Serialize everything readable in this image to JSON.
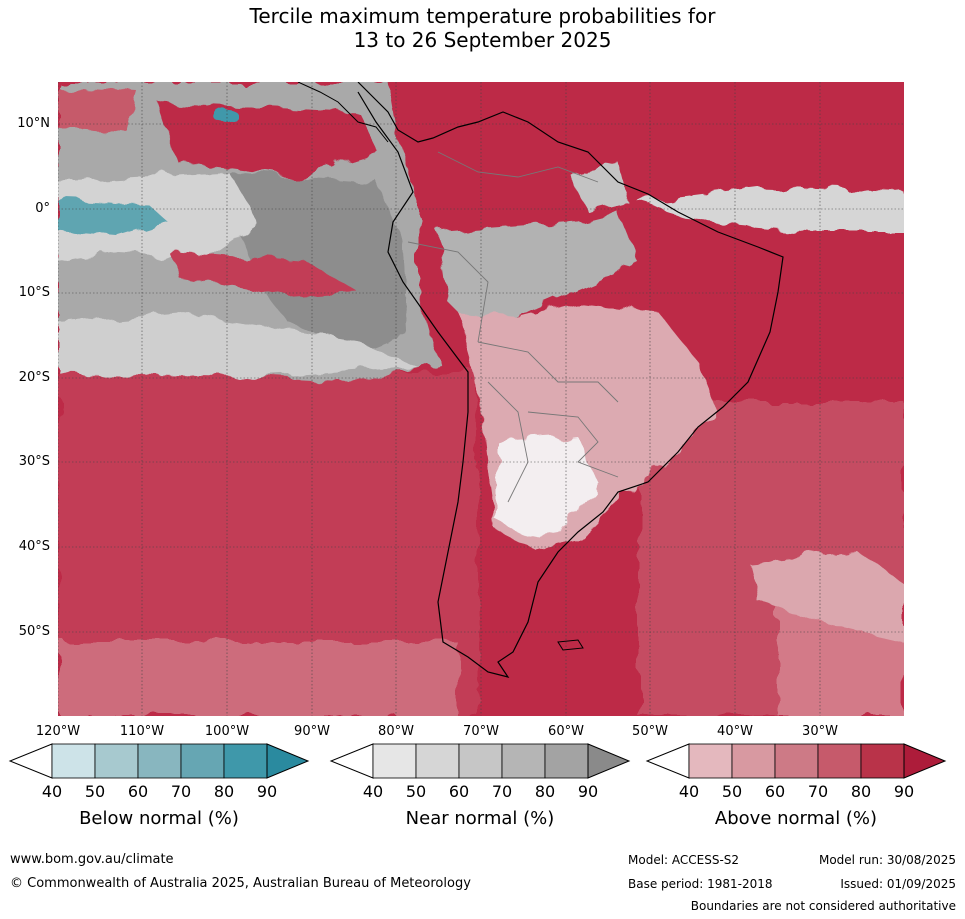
{
  "title": {
    "line1": "Tercile maximum temperature probabilities for",
    "line2": "13 to 26 September 2025"
  },
  "axes": {
    "lat_labels": [
      "10°N",
      "0°",
      "10°S",
      "20°S",
      "30°S",
      "40°S",
      "50°S"
    ],
    "lon_labels": [
      "120°W",
      "110°W",
      "100°W",
      "90°W",
      "80°W",
      "70°W",
      "60°W",
      "50°W",
      "40°W",
      "30°W"
    ]
  },
  "colorbars": [
    {
      "label": "Below normal (%)",
      "ticks": [
        "40",
        "50",
        "60",
        "70",
        "80",
        "90"
      ],
      "colors": [
        "#ffffff",
        "#cde3e8",
        "#a7c9cf",
        "#88b6bf",
        "#66a6b3",
        "#3f98aa",
        "#2a8a9f"
      ]
    },
    {
      "label": "Near normal (%)",
      "ticks": [
        "40",
        "50",
        "60",
        "70",
        "80",
        "90"
      ],
      "colors": [
        "#ffffff",
        "#e6e6e6",
        "#d6d6d6",
        "#c6c6c6",
        "#b5b5b5",
        "#a3a3a3",
        "#8a8a8a"
      ]
    },
    {
      "label": "Above normal (%)",
      "ticks": [
        "40",
        "50",
        "60",
        "70",
        "80",
        "90"
      ],
      "colors": [
        "#ffffff",
        "#e4b8be",
        "#d899a1",
        "#cd7a86",
        "#c65a6b",
        "#b93349",
        "#ad1c3a"
      ]
    }
  ],
  "footer": {
    "url": "www.bom.gov.au/climate",
    "copyright": "© Commonwealth of Australia 2025, Australian Bureau of Meteorology",
    "model": "Model: ACCESS-S2",
    "model_run": "Model run: 30/08/2025",
    "base_period": "Base period: 1981-2018",
    "issued": "Issued: 01/09/2025",
    "disclaimer": "Boundaries are not considered authoritative"
  },
  "colors": {
    "above_high": "#b71d3c",
    "above_mid": "#c64a5e",
    "above_low": "#dba7ae",
    "near_high": "#8c8c8c",
    "near_mid": "#b8b8b8",
    "near_low": "#dadada",
    "below": "#5aa0ad",
    "outline": "#000000",
    "gridline": "#555555"
  }
}
